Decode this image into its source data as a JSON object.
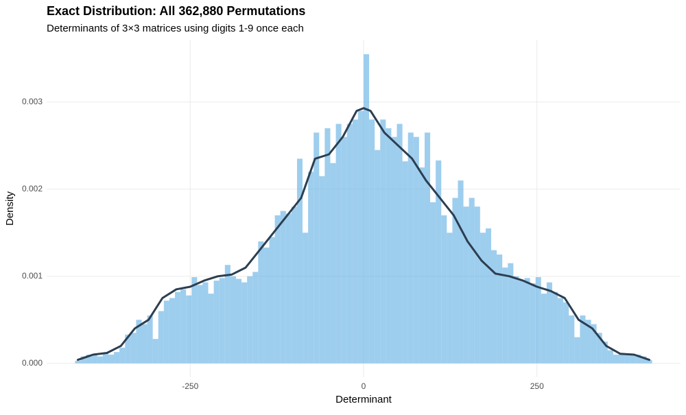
{
  "chart_data": {
    "type": "histogram",
    "title": "Exact Distribution: All 362,880 Permutations",
    "subtitle": "Determinants of 3×3 matrices using digits 1-9 once each",
    "x_label": "Determinant",
    "y_label": "Density",
    "bins": [
      -416,
      -408,
      -400,
      -392,
      -384,
      -376,
      -368,
      -360,
      -352,
      -344,
      -336,
      -328,
      -320,
      -312,
      -304,
      -296,
      -288,
      -280,
      -272,
      -264,
      -256,
      -248,
      -240,
      -232,
      -224,
      -216,
      -208,
      -200,
      -192,
      -184,
      -176,
      -168,
      -160,
      -152,
      -144,
      -136,
      -128,
      -120,
      -112,
      -104,
      -96,
      -88,
      -80,
      -72,
      -64,
      -56,
      -48,
      -40,
      -32,
      -24,
      -16,
      -8,
      0,
      8,
      16,
      24,
      32,
      40,
      48,
      56,
      64,
      72,
      80,
      88,
      96,
      104,
      112,
      120,
      128,
      136,
      144,
      152,
      160,
      168,
      176,
      184,
      192,
      200,
      208,
      216,
      224,
      232,
      240,
      248,
      256,
      264,
      272,
      280,
      288,
      296,
      304,
      312,
      320,
      328,
      336,
      344,
      352,
      360,
      368,
      376,
      384,
      392,
      400,
      408,
      416
    ],
    "values": [
      3e-05,
      8e-05,
      0.0001,
      0.0001,
      8e-05,
      0.00012,
      0.0001,
      0.00013,
      0.00018,
      0.00033,
      0.00035,
      0.0005,
      0.00045,
      0.00055,
      0.00028,
      0.0006,
      0.00072,
      0.00075,
      0.00082,
      0.00085,
      0.00078,
      0.00099,
      0.0009,
      0.00093,
      0.0008,
      0.00095,
      0.00098,
      0.00113,
      0.001,
      0.00097,
      0.00093,
      0.001,
      0.00105,
      0.0014,
      0.00133,
      0.00145,
      0.0017,
      0.00175,
      0.00172,
      0.0018,
      0.00235,
      0.0015,
      0.0022,
      0.00265,
      0.00215,
      0.0027,
      0.0023,
      0.00275,
      0.0026,
      0.00275,
      0.0028,
      0.0029,
      0.00355,
      0.0028,
      0.00245,
      0.0028,
      0.0027,
      0.0026,
      0.00275,
      0.00232,
      0.00265,
      0.0026,
      0.00225,
      0.00265,
      0.00185,
      0.00233,
      0.0017,
      0.0015,
      0.0019,
      0.0021,
      0.0018,
      0.0019,
      0.0018,
      0.0015,
      0.00155,
      0.0013,
      0.00125,
      0.0011,
      0.00115,
      0.001,
      0.00095,
      0.00098,
      0.00092,
      0.00099,
      0.0008,
      0.00093,
      0.00082,
      0.00075,
      0.0007,
      0.00055,
      0.0003,
      0.00055,
      0.0005,
      0.00045,
      0.00035,
      0.00025,
      0.00015,
      0.0001,
      0.00012,
      0.0001,
      0.0001,
      0.0001,
      8e-05,
      4e-05
    ],
    "color": "#5dade2",
    "density": {
      "color": "#2c3e50",
      "x": [
        -412,
        -390,
        -370,
        -350,
        -330,
        -310,
        -290,
        -270,
        -250,
        -230,
        -210,
        -190,
        -170,
        -150,
        -130,
        -110,
        -90,
        -70,
        -50,
        -30,
        -10,
        0,
        10,
        30,
        50,
        70,
        90,
        110,
        130,
        150,
        170,
        190,
        210,
        230,
        250,
        270,
        290,
        310,
        330,
        350,
        370,
        390,
        412
      ],
      "values": [
        4e-05,
        0.0001,
        0.00012,
        0.0002,
        0.0004,
        0.0005,
        0.00075,
        0.00085,
        0.00088,
        0.00095,
        0.001,
        0.00102,
        0.0011,
        0.0013,
        0.0015,
        0.0017,
        0.0019,
        0.00235,
        0.0024,
        0.0026,
        0.0029,
        0.00293,
        0.0029,
        0.00265,
        0.0025,
        0.00235,
        0.0021,
        0.0019,
        0.0017,
        0.0014,
        0.00118,
        0.00103,
        0.001,
        0.00095,
        0.00088,
        0.00083,
        0.00075,
        0.0005,
        0.0004,
        0.0002,
        0.00011,
        0.0001,
        4e-05
      ]
    },
    "xlim": [
      -457,
      457
    ],
    "xticks": [
      -250,
      0,
      250
    ],
    "ylim": [
      -0.00016,
      0.0037
    ],
    "yticks": [
      {
        "value": 0,
        "label": "0.000"
      },
      {
        "value": 0.001,
        "label": "0.001"
      },
      {
        "value": 0.002,
        "label": "0.002"
      },
      {
        "value": 0.003,
        "label": "0.003"
      }
    ],
    "grid": true
  }
}
